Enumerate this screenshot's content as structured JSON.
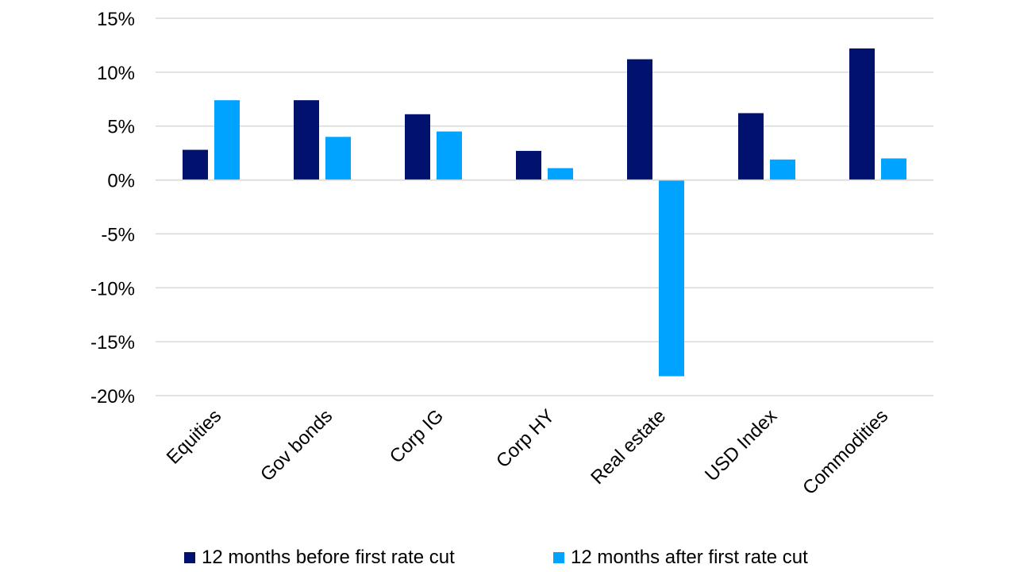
{
  "chart_data": {
    "type": "bar",
    "title": "",
    "xlabel": "",
    "ylabel": "",
    "categories": [
      "Equities",
      "Gov bonds",
      "Corp IG",
      "Corp HY",
      "Real estate",
      "USD Index",
      "Commodities"
    ],
    "series": [
      {
        "name": "12 months before first rate cut",
        "color": "#00126E",
        "values": [
          2.8,
          7.4,
          6.1,
          2.7,
          11.2,
          6.2,
          12.2
        ]
      },
      {
        "name": "12 months after first rate cut",
        "color": "#00A3FF",
        "values": [
          7.4,
          4.0,
          4.5,
          1.1,
          -18.2,
          1.9,
          2.0
        ]
      }
    ],
    "ylim": [
      -20,
      15
    ],
    "yticks": [
      15,
      10,
      5,
      0,
      -5,
      -10,
      -15,
      -20
    ],
    "ytick_labels": [
      "15%",
      "10%",
      "5%",
      "0%",
      "-5%",
      "-10%",
      "-15%",
      "-20%"
    ],
    "grid": true,
    "legend_position": "bottom"
  }
}
